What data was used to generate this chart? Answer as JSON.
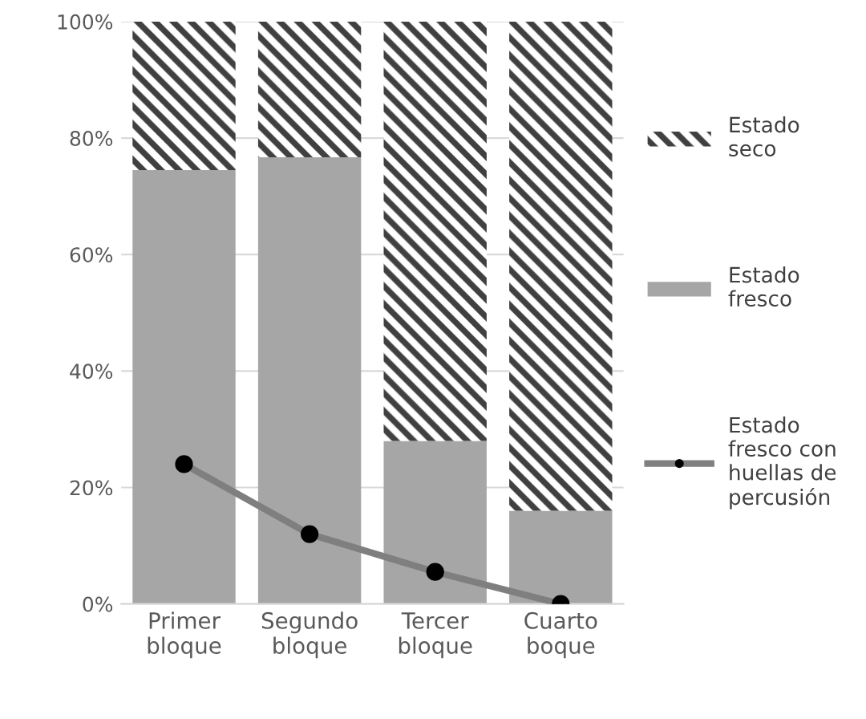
{
  "chart_data": {
    "type": "bar",
    "stacked": true,
    "categories": [
      "Primer bloque",
      "Segundo bloque",
      "Tercer bloque",
      "Cuarto boque"
    ],
    "series": [
      {
        "name": "Estado fresco",
        "color": "#a6a6a6",
        "values": [
          74.5,
          76.7,
          28,
          16
        ]
      },
      {
        "name": "Estado seco",
        "color": "#404040",
        "values": [
          25.5,
          23.3,
          72,
          84
        ]
      },
      {
        "name": "Estado fresco con huellas de percusión",
        "type": "line",
        "color": "#7f7f7f",
        "marker": "circle",
        "values": [
          24,
          12,
          5.5,
          0
        ]
      }
    ],
    "ylim": [
      0,
      100
    ],
    "yticks": [
      {
        "value": 0,
        "label": "0%"
      },
      {
        "value": 20,
        "label": "20%"
      },
      {
        "value": 40,
        "label": "40%"
      },
      {
        "value": 60,
        "label": "60%"
      },
      {
        "value": 80,
        "label": "80%"
      },
      {
        "value": 100,
        "label": "100%"
      }
    ],
    "grid": "y",
    "legend": "right"
  }
}
